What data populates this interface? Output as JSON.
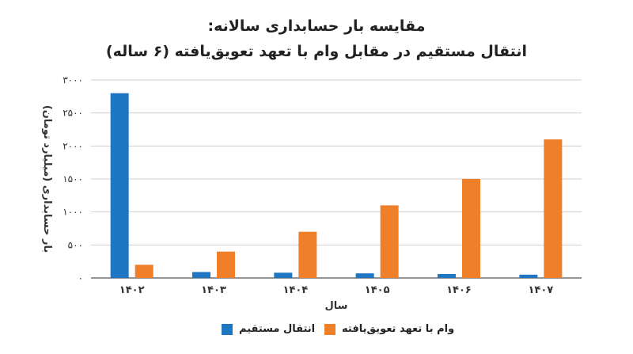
{
  "title_line1": "مقایسه بار حسابداری سالانه:",
  "title_line2": "انتقال مستقیم در مقابل وام با تعهد تعویق‌یافته (۶ ساله)",
  "chart_data": {
    "type": "bar",
    "xlabel": "سال",
    "ylabel": "بار حسابداری (میلیارد تومان)",
    "categories": [
      "۱۴۰۲",
      "۱۴۰۳",
      "۱۴۰۴",
      "۱۴۰۵",
      "۱۴۰۶",
      "۱۴۰۷"
    ],
    "ylim": [
      0,
      3000
    ],
    "yticks": [
      0,
      500,
      1000,
      1500,
      2000,
      2500,
      3000
    ],
    "ytick_labels": [
      "۰",
      "۵۰۰",
      "۱۰۰۰",
      "۱۵۰۰",
      "۲۰۰۰",
      "۲۵۰۰",
      "۳۰۰۰"
    ],
    "grid": true,
    "legend_position": "bottom",
    "series": [
      {
        "name": "انتقال مستقیم",
        "color": "#1f77c4",
        "values": [
          2800,
          90,
          80,
          70,
          60,
          50
        ]
      },
      {
        "name": "وام با تعهد تعویق‌یافته",
        "color": "#f07f2a",
        "values": [
          200,
          400,
          700,
          1100,
          1500,
          2100
        ]
      }
    ]
  }
}
